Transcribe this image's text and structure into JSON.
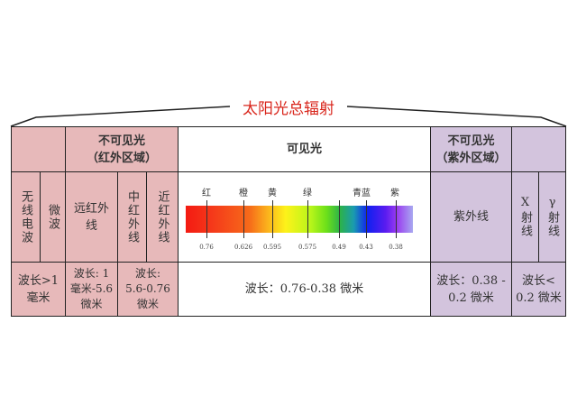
{
  "title": "太阳光总辐射",
  "colors": {
    "title": "#d9261c",
    "infrared_region": "#e7b9ba",
    "ultraviolet_region": "#d3c4dd"
  },
  "header": {
    "infrared": [
      "不可见光",
      "（红外区域）"
    ],
    "visible": "可见光",
    "ultraviolet": [
      "不可见光",
      "（紫外区域）"
    ]
  },
  "bands": {
    "radio": "无线电波",
    "microwave": "微波",
    "far_ir": "远红外线",
    "mid_ir": "中红外线",
    "near_ir": "近红外线",
    "uv": "紫外线",
    "xray": "X射线",
    "gamma": "γ射线"
  },
  "spectrum": {
    "colors": [
      "红",
      "橙",
      "黄",
      "绿",
      "青蓝",
      "紫"
    ],
    "wavelengths": [
      "0.76",
      "0.626",
      "0.595",
      "0.575",
      "0.49",
      "0.43",
      "0.38"
    ]
  },
  "wavelength_ranges": {
    "radio_micro": [
      "波长>1",
      "毫米"
    ],
    "far_ir": [
      "波长: 1",
      "毫米-5.6",
      "微米"
    ],
    "mid_near_ir": [
      "波长:",
      "5.6-0.76",
      "微米"
    ],
    "visible": "波长：0.76-0.38 微米",
    "uv": [
      "波长：0.38 -",
      "0.2 微米"
    ],
    "xray_gamma": [
      "波长<",
      "0.2 微米"
    ]
  }
}
